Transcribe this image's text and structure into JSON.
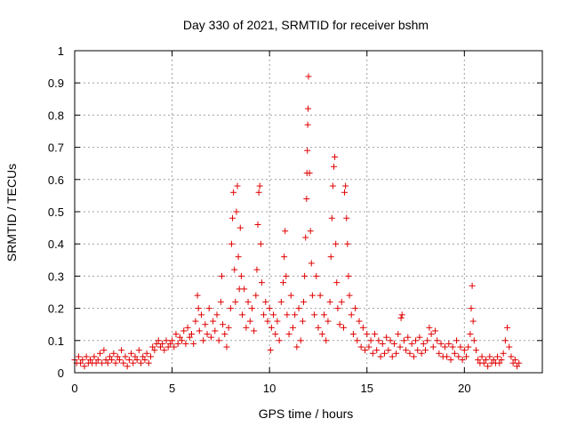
{
  "chart_data": {
    "type": "scatter",
    "title": "Day 330 of 2021, SRMTID for receiver bshm",
    "xlabel": "GPS time / hours",
    "ylabel": "SRMTID / TECUs",
    "xlim": [
      0,
      24
    ],
    "ylim": [
      0,
      1
    ],
    "xticks": [
      0,
      5,
      10,
      15,
      20
    ],
    "xtick_labels": [
      "0",
      "5",
      "10",
      "15",
      "20"
    ],
    "yticks": [
      0,
      0.1,
      0.2,
      0.3,
      0.4,
      0.5,
      0.6,
      0.7,
      0.8,
      0.9,
      1
    ],
    "ytick_labels": [
      "0",
      "0.1",
      "0.2",
      "0.3",
      "0.4",
      "0.5",
      "0.6",
      "0.7",
      "0.8",
      "0.9",
      "1"
    ],
    "grid": true,
    "marker": "+",
    "marker_color": "#e00000",
    "series": [
      {
        "name": "bshm",
        "points": [
          [
            0.0,
            0.04
          ],
          [
            0.1,
            0.03
          ],
          [
            0.2,
            0.05
          ],
          [
            0.3,
            0.03
          ],
          [
            0.4,
            0.04
          ],
          [
            0.5,
            0.02
          ],
          [
            0.6,
            0.05
          ],
          [
            0.7,
            0.03
          ],
          [
            0.8,
            0.04
          ],
          [
            0.9,
            0.03
          ],
          [
            1.0,
            0.05
          ],
          [
            1.1,
            0.03
          ],
          [
            1.2,
            0.04
          ],
          [
            1.3,
            0.06
          ],
          [
            1.4,
            0.03
          ],
          [
            1.5,
            0.07
          ],
          [
            1.6,
            0.04
          ],
          [
            1.7,
            0.03
          ],
          [
            1.8,
            0.05
          ],
          [
            1.9,
            0.04
          ],
          [
            2.0,
            0.06
          ],
          [
            2.1,
            0.03
          ],
          [
            2.2,
            0.05
          ],
          [
            2.3,
            0.04
          ],
          [
            2.4,
            0.07
          ],
          [
            2.5,
            0.03
          ],
          [
            2.6,
            0.05
          ],
          [
            2.7,
            0.02
          ],
          [
            2.8,
            0.04
          ],
          [
            2.9,
            0.06
          ],
          [
            3.0,
            0.03
          ],
          [
            3.1,
            0.05
          ],
          [
            3.2,
            0.04
          ],
          [
            3.3,
            0.07
          ],
          [
            3.4,
            0.03
          ],
          [
            3.5,
            0.05
          ],
          [
            3.6,
            0.04
          ],
          [
            3.7,
            0.06
          ],
          [
            3.8,
            0.03
          ],
          [
            3.9,
            0.05
          ],
          [
            4.0,
            0.08
          ],
          [
            4.1,
            0.07
          ],
          [
            4.2,
            0.09
          ],
          [
            4.3,
            0.1
          ],
          [
            4.4,
            0.08
          ],
          [
            4.5,
            0.09
          ],
          [
            4.6,
            0.07
          ],
          [
            4.7,
            0.1
          ],
          [
            4.8,
            0.08
          ],
          [
            4.9,
            0.09
          ],
          [
            5.0,
            0.1
          ],
          [
            5.1,
            0.08
          ],
          [
            5.2,
            0.12
          ],
          [
            5.3,
            0.09
          ],
          [
            5.4,
            0.11
          ],
          [
            5.5,
            0.1
          ],
          [
            5.6,
            0.13
          ],
          [
            5.7,
            0.09
          ],
          [
            5.8,
            0.14
          ],
          [
            5.9,
            0.11
          ],
          [
            6.0,
            0.12
          ],
          [
            6.1,
            0.09
          ],
          [
            6.2,
            0.16
          ],
          [
            6.3,
            0.24
          ],
          [
            6.35,
            0.2
          ],
          [
            6.4,
            0.13
          ],
          [
            6.5,
            0.18
          ],
          [
            6.6,
            0.1
          ],
          [
            6.7,
            0.15
          ],
          [
            6.8,
            0.12
          ],
          [
            6.9,
            0.2
          ],
          [
            7.0,
            0.11
          ],
          [
            7.1,
            0.16
          ],
          [
            7.2,
            0.13
          ],
          [
            7.3,
            0.18
          ],
          [
            7.4,
            0.1
          ],
          [
            7.5,
            0.22
          ],
          [
            7.55,
            0.3
          ],
          [
            7.6,
            0.15
          ],
          [
            7.7,
            0.12
          ],
          [
            7.8,
            0.08
          ],
          [
            7.9,
            0.14
          ],
          [
            8.0,
            0.2
          ],
          [
            8.05,
            0.4
          ],
          [
            8.1,
            0.48
          ],
          [
            8.15,
            0.56
          ],
          [
            8.2,
            0.32
          ],
          [
            8.25,
            0.22
          ],
          [
            8.3,
            0.5
          ],
          [
            8.35,
            0.58
          ],
          [
            8.4,
            0.36
          ],
          [
            8.45,
            0.26
          ],
          [
            8.5,
            0.45
          ],
          [
            8.55,
            0.3
          ],
          [
            8.6,
            0.18
          ],
          [
            8.7,
            0.26
          ],
          [
            8.8,
            0.14
          ],
          [
            8.9,
            0.22
          ],
          [
            9.0,
            0.16
          ],
          [
            9.1,
            0.2
          ],
          [
            9.2,
            0.13
          ],
          [
            9.3,
            0.24
          ],
          [
            9.35,
            0.32
          ],
          [
            9.4,
            0.46
          ],
          [
            9.45,
            0.56
          ],
          [
            9.5,
            0.58
          ],
          [
            9.55,
            0.4
          ],
          [
            9.6,
            0.28
          ],
          [
            9.7,
            0.18
          ],
          [
            9.8,
            0.22
          ],
          [
            9.9,
            0.16
          ],
          [
            10.0,
            0.2
          ],
          [
            10.05,
            0.07
          ],
          [
            10.1,
            0.14
          ],
          [
            10.2,
            0.18
          ],
          [
            10.3,
            0.12
          ],
          [
            10.4,
            0.16
          ],
          [
            10.5,
            0.1
          ],
          [
            10.6,
            0.22
          ],
          [
            10.7,
            0.28
          ],
          [
            10.75,
            0.36
          ],
          [
            10.8,
            0.44
          ],
          [
            10.85,
            0.3
          ],
          [
            10.9,
            0.18
          ],
          [
            11.0,
            0.12
          ],
          [
            11.1,
            0.24
          ],
          [
            11.2,
            0.14
          ],
          [
            11.3,
            0.18
          ],
          [
            11.4,
            0.08
          ],
          [
            11.5,
            0.2
          ],
          [
            11.6,
            0.1
          ],
          [
            11.7,
            0.16
          ],
          [
            11.75,
            0.22
          ],
          [
            11.8,
            0.3
          ],
          [
            11.85,
            0.42
          ],
          [
            11.9,
            0.54
          ],
          [
            11.92,
            0.62
          ],
          [
            11.94,
            0.69
          ],
          [
            11.96,
            0.77
          ],
          [
            11.98,
            0.82
          ],
          [
            12.0,
            0.92
          ],
          [
            12.05,
            0.62
          ],
          [
            12.1,
            0.44
          ],
          [
            12.15,
            0.34
          ],
          [
            12.2,
            0.24
          ],
          [
            12.3,
            0.18
          ],
          [
            12.4,
            0.3
          ],
          [
            12.5,
            0.14
          ],
          [
            12.6,
            0.24
          ],
          [
            12.7,
            0.12
          ],
          [
            12.8,
            0.18
          ],
          [
            12.9,
            0.1
          ],
          [
            13.0,
            0.16
          ],
          [
            13.1,
            0.22
          ],
          [
            13.15,
            0.36
          ],
          [
            13.2,
            0.48
          ],
          [
            13.25,
            0.58
          ],
          [
            13.3,
            0.64
          ],
          [
            13.35,
            0.67
          ],
          [
            13.4,
            0.4
          ],
          [
            13.45,
            0.28
          ],
          [
            13.5,
            0.2
          ],
          [
            13.6,
            0.15
          ],
          [
            13.7,
            0.22
          ],
          [
            13.8,
            0.14
          ],
          [
            13.85,
            0.56
          ],
          [
            13.9,
            0.58
          ],
          [
            13.95,
            0.48
          ],
          [
            14.0,
            0.4
          ],
          [
            14.05,
            0.3
          ],
          [
            14.1,
            0.24
          ],
          [
            14.2,
            0.18
          ],
          [
            14.3,
            0.12
          ],
          [
            14.4,
            0.2
          ],
          [
            14.5,
            0.1
          ],
          [
            14.6,
            0.16
          ],
          [
            14.7,
            0.08
          ],
          [
            14.8,
            0.14
          ],
          [
            14.9,
            0.07
          ],
          [
            15.0,
            0.12
          ],
          [
            15.1,
            0.08
          ],
          [
            15.2,
            0.1
          ],
          [
            15.3,
            0.06
          ],
          [
            15.4,
            0.12
          ],
          [
            15.5,
            0.07
          ],
          [
            15.6,
            0.1
          ],
          [
            15.7,
            0.05
          ],
          [
            15.8,
            0.09
          ],
          [
            15.9,
            0.06
          ],
          [
            16.0,
            0.11
          ],
          [
            16.1,
            0.07
          ],
          [
            16.2,
            0.1
          ],
          [
            16.3,
            0.05
          ],
          [
            16.4,
            0.09
          ],
          [
            16.5,
            0.06
          ],
          [
            16.6,
            0.12
          ],
          [
            16.7,
            0.08
          ],
          [
            16.75,
            0.17
          ],
          [
            16.8,
            0.18
          ],
          [
            16.9,
            0.1
          ],
          [
            17.0,
            0.07
          ],
          [
            17.1,
            0.11
          ],
          [
            17.2,
            0.06
          ],
          [
            17.3,
            0.09
          ],
          [
            17.4,
            0.05
          ],
          [
            17.5,
            0.1
          ],
          [
            17.6,
            0.07
          ],
          [
            17.7,
            0.11
          ],
          [
            17.8,
            0.06
          ],
          [
            17.9,
            0.09
          ],
          [
            18.0,
            0.07
          ],
          [
            18.1,
            0.1
          ],
          [
            18.2,
            0.14
          ],
          [
            18.3,
            0.12
          ],
          [
            18.4,
            0.08
          ],
          [
            18.5,
            0.13
          ],
          [
            18.6,
            0.1
          ],
          [
            18.7,
            0.06
          ],
          [
            18.8,
            0.09
          ],
          [
            18.9,
            0.05
          ],
          [
            19.0,
            0.08
          ],
          [
            19.1,
            0.05
          ],
          [
            19.2,
            0.09
          ],
          [
            19.3,
            0.04
          ],
          [
            19.4,
            0.08
          ],
          [
            19.5,
            0.06
          ],
          [
            19.6,
            0.1
          ],
          [
            19.7,
            0.05
          ],
          [
            19.8,
            0.08
          ],
          [
            19.9,
            0.04
          ],
          [
            20.0,
            0.07
          ],
          [
            20.1,
            0.05
          ],
          [
            20.2,
            0.08
          ],
          [
            20.3,
            0.12
          ],
          [
            20.35,
            0.2
          ],
          [
            20.4,
            0.27
          ],
          [
            20.45,
            0.16
          ],
          [
            20.5,
            0.1
          ],
          [
            20.6,
            0.07
          ],
          [
            20.7,
            0.04
          ],
          [
            20.8,
            0.03
          ],
          [
            20.9,
            0.05
          ],
          [
            21.0,
            0.03
          ],
          [
            21.1,
            0.04
          ],
          [
            21.2,
            0.02
          ],
          [
            21.3,
            0.05
          ],
          [
            21.4,
            0.03
          ],
          [
            21.5,
            0.04
          ],
          [
            21.6,
            0.03
          ],
          [
            21.7,
            0.05
          ],
          [
            21.8,
            0.03
          ],
          [
            21.9,
            0.04
          ],
          [
            22.0,
            0.06
          ],
          [
            22.1,
            0.1
          ],
          [
            22.2,
            0.14
          ],
          [
            22.3,
            0.08
          ],
          [
            22.4,
            0.05
          ],
          [
            22.5,
            0.03
          ],
          [
            22.6,
            0.04
          ],
          [
            22.7,
            0.02
          ],
          [
            22.8,
            0.03
          ]
        ]
      }
    ]
  }
}
